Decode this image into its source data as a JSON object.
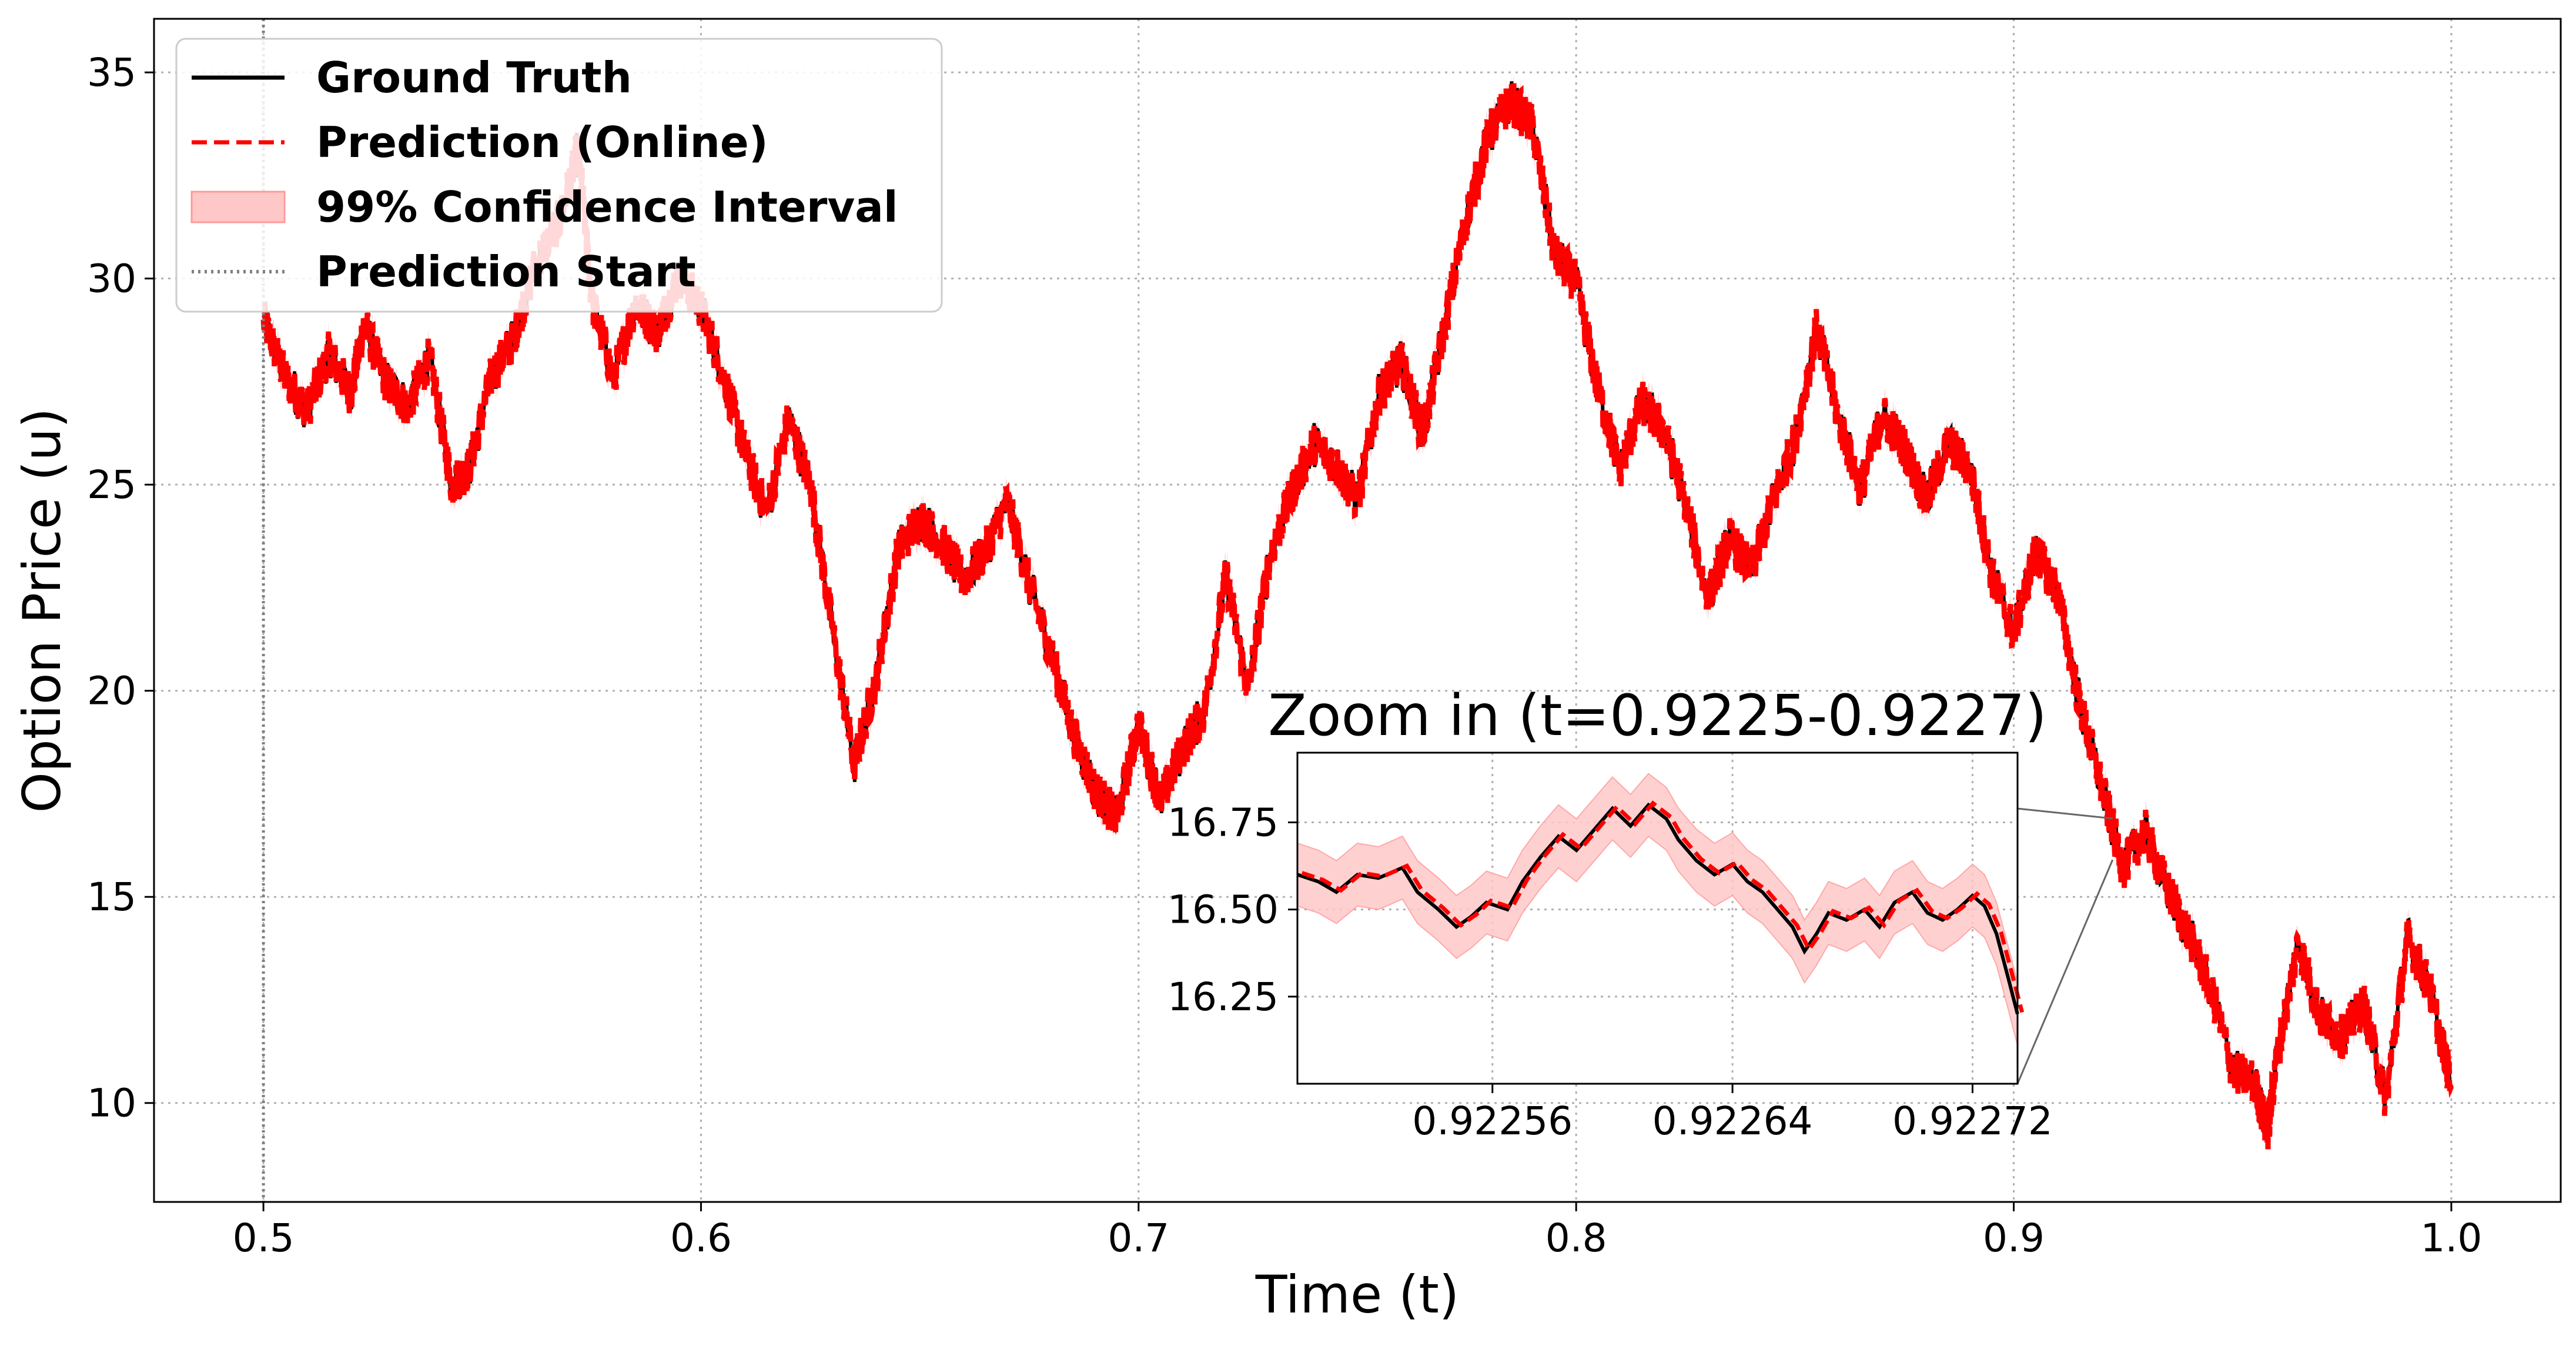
{
  "chart_data": {
    "type": "line",
    "title": "",
    "xlabel": "Time (t)",
    "ylabel": "Option Price (u)",
    "xlim": [
      0.475,
      1.025
    ],
    "ylim": [
      7.6,
      36.3
    ],
    "xticks": [
      0.5,
      0.6,
      0.7,
      0.8,
      0.9,
      1.0
    ],
    "xtick_labels": [
      "0.5",
      "0.6",
      "0.7",
      "0.8",
      "0.9",
      "1.0"
    ],
    "yticks": [
      10,
      15,
      20,
      25,
      30,
      35
    ],
    "ytick_labels": [
      "10",
      "15",
      "20",
      "25",
      "30",
      "35"
    ],
    "grid": true,
    "legend_position": "top-left",
    "legend": [
      {
        "label": "Ground Truth",
        "style": "solid",
        "color": "#000000"
      },
      {
        "label": "Prediction (Online)",
        "style": "dashed",
        "color": "#ff0000"
      },
      {
        "label": "99% Confidence Interval",
        "style": "band",
        "color": "#ffc8c8"
      },
      {
        "label": "Prediction Start",
        "style": "dotted",
        "color": "#808080"
      }
    ],
    "prediction_start": 0.5,
    "series": [
      {
        "name": "Ground Truth",
        "color": "#000000",
        "points": [
          [
            0.5,
            29.0
          ],
          [
            0.505,
            27.6
          ],
          [
            0.51,
            26.8
          ],
          [
            0.515,
            28.2
          ],
          [
            0.52,
            27.2
          ],
          [
            0.523,
            28.9
          ],
          [
            0.528,
            27.5
          ],
          [
            0.533,
            26.9
          ],
          [
            0.538,
            28.1
          ],
          [
            0.543,
            25.0
          ],
          [
            0.547,
            25.4
          ],
          [
            0.552,
            27.6
          ],
          [
            0.557,
            28.5
          ],
          [
            0.562,
            30.3
          ],
          [
            0.568,
            31.5
          ],
          [
            0.572,
            33.2
          ],
          [
            0.575,
            29.5
          ],
          [
            0.58,
            27.6
          ],
          [
            0.585,
            29.4
          ],
          [
            0.59,
            28.7
          ],
          [
            0.595,
            30.1
          ],
          [
            0.6,
            29.3
          ],
          [
            0.605,
            27.7
          ],
          [
            0.61,
            25.8
          ],
          [
            0.615,
            24.3
          ],
          [
            0.62,
            26.6
          ],
          [
            0.625,
            25.0
          ],
          [
            0.63,
            21.5
          ],
          [
            0.635,
            18.2
          ],
          [
            0.64,
            20.3
          ],
          [
            0.645,
            23.4
          ],
          [
            0.65,
            24.2
          ],
          [
            0.655,
            23.6
          ],
          [
            0.66,
            22.7
          ],
          [
            0.665,
            23.4
          ],
          [
            0.67,
            24.6
          ],
          [
            0.675,
            22.6
          ],
          [
            0.68,
            20.9
          ],
          [
            0.685,
            19.0
          ],
          [
            0.69,
            17.6
          ],
          [
            0.695,
            16.9
          ],
          [
            0.7,
            19.2
          ],
          [
            0.705,
            17.3
          ],
          [
            0.71,
            18.6
          ],
          [
            0.715,
            19.5
          ],
          [
            0.72,
            22.8
          ],
          [
            0.725,
            20.0
          ],
          [
            0.73,
            23.3
          ],
          [
            0.735,
            24.8
          ],
          [
            0.74,
            26.0
          ],
          [
            0.745,
            25.5
          ],
          [
            0.75,
            24.6
          ],
          [
            0.755,
            27.2
          ],
          [
            0.76,
            28.0
          ],
          [
            0.765,
            26.2
          ],
          [
            0.77,
            28.9
          ],
          [
            0.775,
            31.5
          ],
          [
            0.78,
            33.5
          ],
          [
            0.785,
            34.3
          ],
          [
            0.79,
            33.7
          ],
          [
            0.795,
            30.6
          ],
          [
            0.8,
            29.9
          ],
          [
            0.805,
            27.3
          ],
          [
            0.81,
            25.4
          ],
          [
            0.815,
            27.0
          ],
          [
            0.82,
            26.3
          ],
          [
            0.825,
            24.6
          ],
          [
            0.83,
            22.2
          ],
          [
            0.835,
            23.7
          ],
          [
            0.84,
            22.9
          ],
          [
            0.845,
            24.6
          ],
          [
            0.85,
            26.1
          ],
          [
            0.855,
            28.8
          ],
          [
            0.86,
            26.6
          ],
          [
            0.865,
            24.9
          ],
          [
            0.87,
            26.7
          ],
          [
            0.875,
            25.9
          ],
          [
            0.88,
            24.6
          ],
          [
            0.885,
            26.0
          ],
          [
            0.89,
            25.4
          ],
          [
            0.895,
            22.8
          ],
          [
            0.9,
            21.4
          ],
          [
            0.905,
            23.4
          ],
          [
            0.91,
            22.4
          ],
          [
            0.915,
            19.7
          ],
          [
            0.92,
            17.7
          ],
          [
            0.925,
            15.7
          ],
          [
            0.93,
            16.6
          ],
          [
            0.935,
            15.2
          ],
          [
            0.94,
            14.1
          ],
          [
            0.945,
            12.8
          ],
          [
            0.95,
            10.8
          ],
          [
            0.955,
            10.5
          ],
          [
            0.958,
            9.3
          ],
          [
            0.96,
            11.0
          ],
          [
            0.965,
            13.9
          ],
          [
            0.97,
            12.1
          ],
          [
            0.975,
            11.6
          ],
          [
            0.98,
            12.4
          ],
          [
            0.985,
            10.1
          ],
          [
            0.99,
            14.0
          ],
          [
            0.995,
            12.8
          ],
          [
            1.0,
            10.4
          ]
        ]
      },
      {
        "name": "Prediction (Online)",
        "color": "#ff0000"
      }
    ],
    "inset": {
      "title": "Zoom in (t=0.9225-0.9227)",
      "xlim": [
        0.922495,
        0.922735
      ],
      "ylim": [
        16.0,
        16.95
      ],
      "xticks": [
        0.92256,
        0.92264,
        0.92272
      ],
      "xtick_labels": [
        "0.92256",
        "0.92264",
        "0.92272"
      ],
      "yticks": [
        16.25,
        16.5,
        16.75
      ],
      "ytick_labels": [
        "16.25",
        "16.50",
        "16.75"
      ],
      "points": [
        [
          0.922495,
          16.6
        ],
        [
          0.922502,
          16.58
        ],
        [
          0.922508,
          16.55
        ],
        [
          0.922515,
          16.6
        ],
        [
          0.922522,
          16.59
        ],
        [
          0.92253,
          16.62
        ],
        [
          0.922535,
          16.55
        ],
        [
          0.922542,
          16.5
        ],
        [
          0.922548,
          16.45
        ],
        [
          0.922553,
          16.48
        ],
        [
          0.922558,
          16.52
        ],
        [
          0.922565,
          16.5
        ],
        [
          0.92257,
          16.58
        ],
        [
          0.922576,
          16.65
        ],
        [
          0.922582,
          16.71
        ],
        [
          0.922588,
          16.67
        ],
        [
          0.922594,
          16.73
        ],
        [
          0.9226,
          16.79
        ],
        [
          0.922606,
          16.74
        ],
        [
          0.922612,
          16.8
        ],
        [
          0.922618,
          16.76
        ],
        [
          0.922622,
          16.7
        ],
        [
          0.922628,
          16.64
        ],
        [
          0.922634,
          16.6
        ],
        [
          0.92264,
          16.63
        ],
        [
          0.922645,
          16.58
        ],
        [
          0.92265,
          16.55
        ],
        [
          0.922655,
          16.5
        ],
        [
          0.92266,
          16.45
        ],
        [
          0.922664,
          16.38
        ],
        [
          0.922668,
          16.43
        ],
        [
          0.922672,
          16.49
        ],
        [
          0.922678,
          16.47
        ],
        [
          0.922684,
          16.5
        ],
        [
          0.922689,
          16.45
        ],
        [
          0.922694,
          16.52
        ],
        [
          0.9227,
          16.55
        ],
        [
          0.922705,
          16.49
        ],
        [
          0.92271,
          16.47
        ],
        [
          0.922715,
          16.5
        ],
        [
          0.92272,
          16.54
        ],
        [
          0.922724,
          16.51
        ],
        [
          0.922728,
          16.43
        ],
        [
          0.922732,
          16.3
        ],
        [
          0.922735,
          16.2
        ]
      ],
      "band_halfwidth": 0.09
    }
  }
}
